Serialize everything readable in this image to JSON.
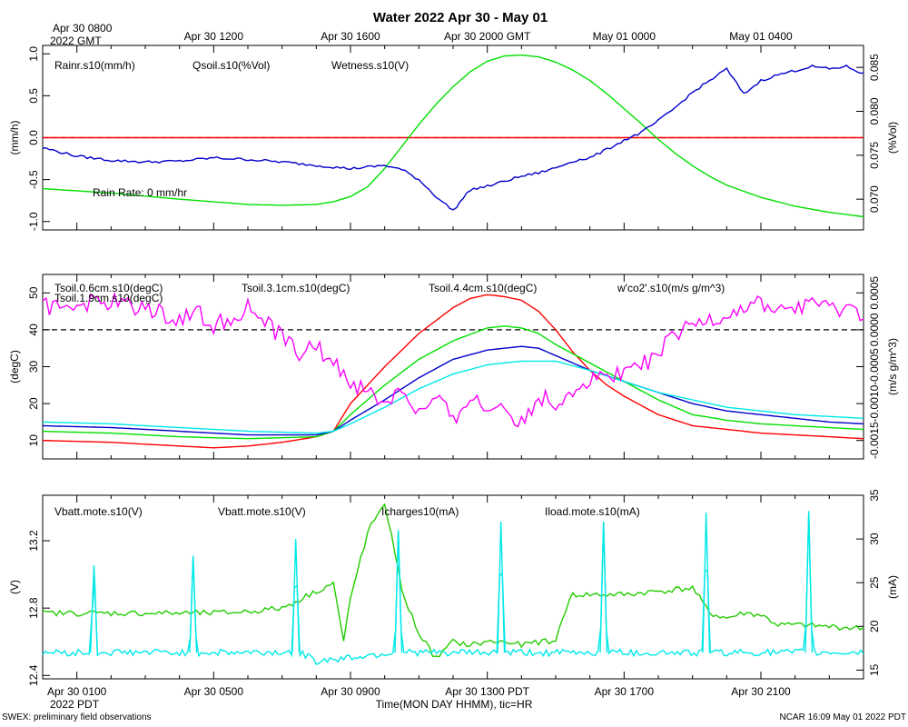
{
  "title": "Water 2022 Apr 30 - May 01",
  "top_axis": {
    "first_label_line1": "Apr 30 0800",
    "first_label_line2": "2022 GMT",
    "labels": [
      "Apr 30 1200",
      "Apr 30 1600",
      "Apr 30 2000 GMT",
      "May 01 0000",
      "May 01 0400"
    ]
  },
  "bottom_axis": {
    "labels": [
      "Apr 30 0100",
      "Apr 30 0500",
      "Apr 30 0900",
      "Apr 30 1300 PDT",
      "Apr 30 1700",
      "Apr 30 2100"
    ],
    "year_label": "2022 PDT",
    "xlabel": "Time(MON DAY HHMM), tic=HR"
  },
  "footer": {
    "left": "SWEX: preliminary field observations",
    "right": "NCAR 16:09 May 01 2022 PDT"
  },
  "colors": {
    "red": "#ff0000",
    "green": "#00e000",
    "blue": "#0000cc",
    "cyan": "#00e8e8",
    "magenta": "#ff00ff",
    "green2": "#22cc00"
  },
  "chart_data": [
    {
      "type": "line",
      "title": "Water panel",
      "x_unit": "hours since Apr 30 0000 PDT",
      "xlim": [
        0,
        24
      ],
      "left_axis": {
        "label": "(mm/h)",
        "ylim": [
          -1.1,
          1.1
        ],
        "ticks": [
          -1.0,
          -0.5,
          0.0,
          0.5,
          1.0
        ],
        "tick_labels": [
          "-1.0",
          "-0.5",
          "0.0",
          "0.5",
          "1.0"
        ]
      },
      "right_axis": {
        "label": "(%Vol)",
        "ylim": [
          0.0665,
          0.0875
        ],
        "ticks": [
          0.07,
          0.075,
          0.08,
          0.085
        ],
        "tick_labels": [
          "0.070",
          "0.075",
          "0.080",
          "0.085"
        ]
      },
      "legend": [
        "Rainr.s10(mm/h)",
        "Qsoil.s10(%Vol)",
        "Wetness.s10(V)"
      ],
      "annotation": "Rain Rate: 0 mm/hr",
      "series": [
        {
          "name": "Rainr.s10(mm/h)",
          "axis": "left",
          "color": "red",
          "x": [
            0,
            24
          ],
          "y": [
            0,
            0
          ]
        },
        {
          "name": "Qsoil.s10(%Vol)",
          "axis": "right",
          "color": "green",
          "x": [
            0,
            2,
            4,
            6,
            7,
            8,
            8.5,
            9,
            9.5,
            10,
            10.5,
            11,
            11.5,
            12,
            12.5,
            13,
            13.5,
            14,
            14.5,
            15,
            15.5,
            16,
            16.5,
            17,
            17.5,
            18,
            18.5,
            19,
            19.5,
            20,
            21,
            22,
            23,
            24
          ],
          "y": [
            0.0712,
            0.0707,
            0.07,
            0.0694,
            0.0693,
            0.0694,
            0.0697,
            0.0703,
            0.0714,
            0.0735,
            0.076,
            0.0785,
            0.0808,
            0.0828,
            0.0845,
            0.0857,
            0.0863,
            0.0864,
            0.0862,
            0.0856,
            0.0847,
            0.0835,
            0.082,
            0.0803,
            0.0786,
            0.0768,
            0.0752,
            0.0738,
            0.0726,
            0.0716,
            0.0702,
            0.0692,
            0.0685,
            0.068
          ]
        },
        {
          "name": "Wetness.s10(V)",
          "axis": "left",
          "color": "blue",
          "x": [
            0,
            1,
            2,
            3,
            4,
            5,
            6,
            7,
            8,
            9,
            10,
            10.5,
            11,
            11.5,
            12,
            12.5,
            13,
            13.5,
            14,
            14.5,
            15,
            15.5,
            16,
            16.5,
            17,
            17.5,
            18,
            18.5,
            19,
            19.5,
            20,
            20.5,
            21,
            21.5,
            22,
            22.5,
            23,
            23.5,
            24
          ],
          "y": [
            -0.12,
            -0.22,
            -0.27,
            -0.29,
            -0.28,
            -0.24,
            -0.26,
            -0.29,
            -0.33,
            -0.37,
            -0.33,
            -0.38,
            -0.5,
            -0.7,
            -0.87,
            -0.62,
            -0.58,
            -0.52,
            -0.46,
            -0.42,
            -0.36,
            -0.28,
            -0.24,
            -0.14,
            -0.03,
            0.06,
            0.2,
            0.36,
            0.54,
            0.68,
            0.82,
            0.52,
            0.68,
            0.75,
            0.8,
            0.85,
            0.82,
            0.85,
            0.76
          ]
        }
      ]
    },
    {
      "type": "line",
      "title": "Soil temperature panel",
      "x_unit": "hours since Apr 30 0000 PDT",
      "xlim": [
        0,
        24
      ],
      "left_axis": {
        "label": "(degC)",
        "ylim": [
          5,
          55
        ],
        "ticks": [
          10,
          20,
          30,
          40,
          50
        ],
        "tick_labels": [
          "10",
          "20",
          "30",
          "40",
          "50"
        ]
      },
      "right_axis": {
        "label": "(m/s g/m^3)",
        "ylim": [
          -0.00175,
          0.00075
        ],
        "ticks": [
          -0.0015,
          -0.001,
          -0.0005,
          0.0,
          0.0005
        ],
        "tick_labels": [
          "-0.0015",
          "-0.0010",
          "-0.0005",
          "0.0000",
          "0.0005"
        ]
      },
      "legend": [
        "Tsoil.0.6cm.s10(degC)",
        "Tsoil.1.9cm.s10(degC)",
        "Tsoil.3.1cm.s10(degC)",
        "Tsoil.4.4cm.s10(degC)",
        "w'co2'.s10(m/s g/m^3)"
      ],
      "series": [
        {
          "name": "Tsoil.0.6cm.s10(degC)",
          "color": "red",
          "x": [
            0,
            2,
            4,
            5,
            6,
            7,
            8,
            8.5,
            9,
            10,
            11,
            12,
            12.5,
            13,
            13.5,
            14,
            14.5,
            15,
            15.5,
            16,
            16.5,
            17,
            18,
            19,
            20,
            21,
            22,
            23,
            24
          ],
          "y": [
            10,
            9.5,
            8.5,
            8,
            8.5,
            9.5,
            11,
            12.5,
            20,
            30,
            39,
            46,
            48.5,
            49.5,
            49,
            48,
            45,
            40,
            34,
            29,
            25,
            22,
            17,
            14,
            13,
            12,
            11.5,
            11,
            10.5
          ]
        },
        {
          "name": "Tsoil.1.9cm.s10(degC)",
          "color": "green",
          "x": [
            0,
            2,
            4,
            6,
            8,
            8.5,
            9,
            10,
            11,
            12,
            13,
            13.5,
            14,
            14.5,
            15,
            16,
            17,
            18,
            19,
            20,
            21,
            22,
            23,
            24
          ],
          "y": [
            12.5,
            12,
            11,
            10.5,
            11,
            12.5,
            17,
            25,
            32,
            37,
            40.5,
            41,
            40.5,
            39,
            36,
            31,
            26,
            21,
            17,
            15.5,
            14.5,
            14,
            13.5,
            13
          ]
        },
        {
          "name": "Tsoil.3.1cm.s10(degC)",
          "color": "blue",
          "x": [
            0,
            2,
            4,
            6,
            8,
            8.5,
            9,
            10,
            11,
            12,
            13,
            14,
            14.5,
            15,
            16,
            17,
            18,
            19,
            20,
            21,
            22,
            23,
            24
          ],
          "y": [
            14,
            13.5,
            12.5,
            11.5,
            11.5,
            12.5,
            15.5,
            21,
            27,
            32,
            34.5,
            35.5,
            35,
            33,
            29,
            26,
            23,
            20,
            18,
            17,
            16,
            15,
            14.5
          ]
        },
        {
          "name": "Tsoil.4.4cm.s10(degC)",
          "color": "cyan",
          "x": [
            0,
            2,
            4,
            6,
            8,
            8.5,
            9,
            10,
            11,
            12,
            13,
            14,
            15,
            16,
            17,
            18,
            19,
            20,
            21,
            22,
            23,
            24
          ],
          "y": [
            15,
            14.5,
            13.5,
            12.5,
            12,
            12.5,
            14.5,
            19,
            24,
            28,
            30.5,
            31.5,
            31.5,
            29,
            26,
            23,
            21,
            19,
            18,
            17,
            16.5,
            16
          ]
        },
        {
          "name": "w'co2'.s10(m/s g/m^3)",
          "axis": "right",
          "color": "magenta",
          "x": [
            0,
            1,
            2,
            3,
            4,
            4.5,
            5,
            5.5,
            6,
            6.5,
            7,
            7.5,
            8,
            8.5,
            9,
            9.5,
            10,
            10.5,
            11,
            11.5,
            12,
            12.5,
            13,
            13.5,
            14,
            14.5,
            15,
            15.5,
            16,
            16.5,
            17,
            17.5,
            18,
            18.5,
            19,
            19.5,
            20,
            20.5,
            21,
            21.5,
            22,
            22.5,
            23,
            23.5,
            24
          ],
          "y": [
            0.0003,
            0.00035,
            0.00038,
            0.0003,
            0.00015,
            0.00025,
            5e-05,
            0.00018,
            0.0003,
            0.0001,
            -0.0001,
            -0.0003,
            -0.00025,
            -0.00045,
            -0.0007,
            -0.00085,
            -0.001,
            -0.0008,
            -0.00115,
            -0.00095,
            -0.0012,
            -0.0009,
            -0.0011,
            -0.001,
            -0.0013,
            -0.0009,
            -0.001,
            -0.0008,
            -0.0007,
            -0.0006,
            -0.00055,
            -0.0005,
            -0.0003,
            -0.0001,
            5e-05,
            0.00015,
            0.0002,
            0.0003,
            0.00035,
            0.00025,
            0.0003,
            0.0004,
            0.00025,
            0.0003,
            0.0002
          ]
        }
      ]
    },
    {
      "type": "line",
      "title": "Power panel",
      "x_unit": "hours since Apr 30 0000 PDT",
      "xlim": [
        0,
        24
      ],
      "left_axis": {
        "label": "(V)",
        "ylim": [
          12.38,
          13.47
        ],
        "ticks": [
          12.4,
          12.8,
          13.2
        ],
        "tick_labels": [
          "12.4",
          "12.8",
          "13.2"
        ]
      },
      "right_axis": {
        "label": "(mA)",
        "ylim": [
          14,
          35
        ],
        "ticks": [
          15,
          20,
          25,
          30,
          35
        ],
        "tick_labels": [
          "15",
          "20",
          "25",
          "30",
          "35"
        ]
      },
      "legend": [
        "Vbatt.mote.s10(V)",
        "Vbatt.mote.s10(V)",
        "Icharges10(mA)",
        "Iload.mote.s10(mA)"
      ],
      "series": [
        {
          "name": "Vbatt.mote.s10(V)",
          "axis": "left",
          "color": "green2",
          "x": [
            0,
            1,
            2,
            3,
            4,
            5,
            6,
            7,
            7.5,
            8,
            8.5,
            8.8,
            9,
            9.3,
            9.6,
            10,
            10.2,
            10.5,
            11,
            11.5,
            12,
            12.5,
            13,
            13.5,
            14,
            14.5,
            15,
            15.2,
            15.5,
            16,
            17,
            18,
            19,
            19.5,
            20,
            20.5,
            21,
            21.5,
            22,
            23,
            24
          ],
          "y": [
            12.77,
            12.77,
            12.77,
            12.77,
            12.77,
            12.77,
            12.78,
            12.8,
            12.85,
            12.9,
            12.95,
            12.6,
            12.85,
            13.1,
            13.3,
            13.4,
            13.25,
            12.9,
            12.65,
            12.5,
            12.6,
            12.58,
            12.6,
            12.6,
            12.58,
            12.6,
            12.6,
            12.75,
            12.88,
            12.88,
            12.88,
            12.9,
            12.92,
            12.77,
            12.74,
            12.77,
            12.76,
            12.7,
            12.7,
            12.69,
            12.68
          ]
        },
        {
          "name": "Iload.mote.s10(mA)",
          "axis": "right",
          "color": "cyan",
          "x": [
            0,
            1.4,
            1.5,
            1.6,
            2,
            4.3,
            4.4,
            4.5,
            5,
            7.3,
            7.4,
            7.5,
            8,
            10.3,
            10.4,
            10.5,
            11,
            13.3,
            13.4,
            13.5,
            14,
            16.3,
            16.4,
            16.5,
            17,
            19.3,
            19.4,
            19.5,
            20,
            22.3,
            22.4,
            22.5,
            24
          ],
          "y": [
            17,
            17,
            27,
            17,
            17,
            17,
            28,
            17,
            17,
            17,
            30,
            17,
            16,
            17,
            31,
            17,
            17,
            17,
            32,
            17,
            17,
            17,
            32,
            17,
            17,
            17,
            33,
            17,
            17,
            17,
            33,
            17,
            17
          ]
        }
      ]
    }
  ]
}
